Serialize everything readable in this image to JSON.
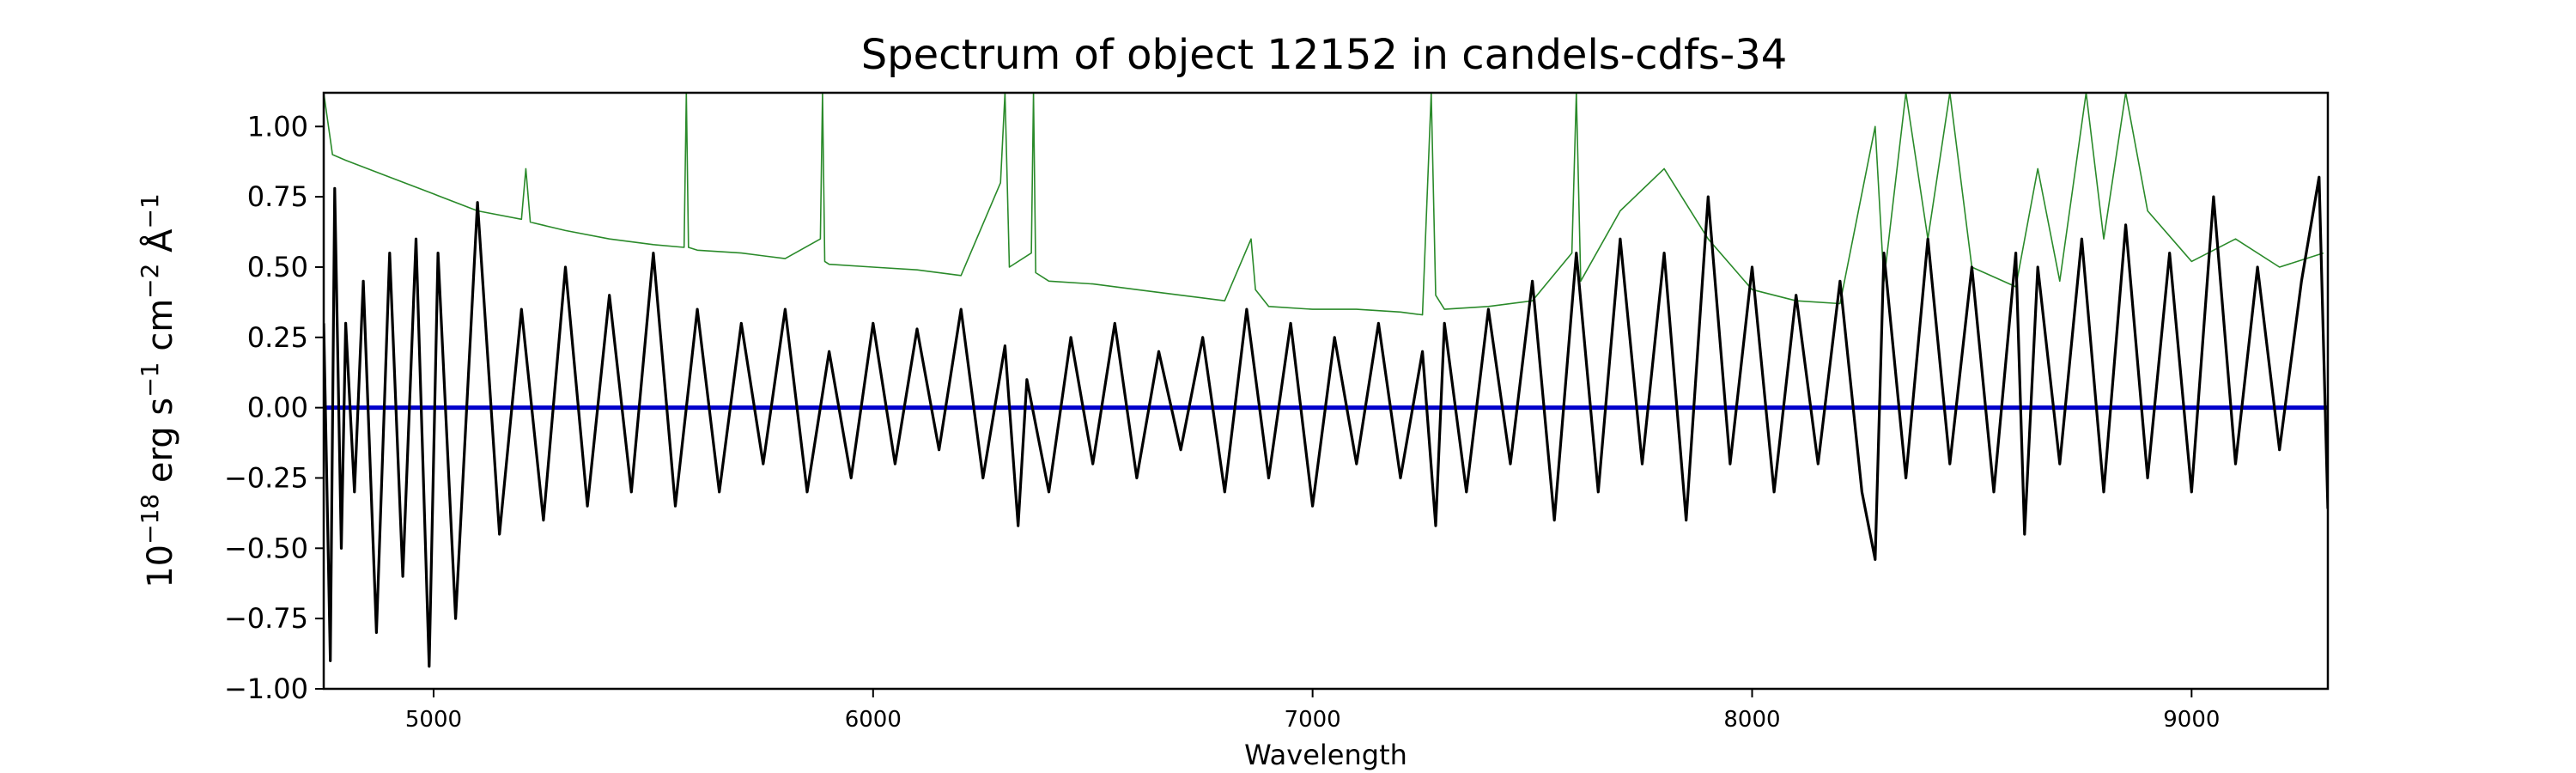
{
  "chart_data": {
    "type": "line",
    "title": "Spectrum of object 12152 in candels-cdfs-34",
    "xlabel": "Wavelength",
    "ylabel_parts": [
      "10",
      "−18",
      " erg s",
      "−1",
      " cm",
      "−2",
      " Å",
      "−1"
    ],
    "xlim": [
      4750,
      9310
    ],
    "ylim": [
      -1.0,
      1.12
    ],
    "x_ticks": [
      5000,
      6000,
      7000,
      8000,
      9000
    ],
    "x_tick_labels": [
      "5000",
      "6000",
      "7000",
      "8000",
      "9000"
    ],
    "y_ticks": [
      -1.0,
      -0.75,
      -0.5,
      -0.25,
      0.0,
      0.25,
      0.5,
      0.75,
      1.0
    ],
    "y_tick_labels": [
      "−1.00",
      "−0.75",
      "−0.50",
      "−0.25",
      "0.00",
      "0.25",
      "0.50",
      "0.75",
      "1.00"
    ],
    "grid": false,
    "series": [
      {
        "role": "error",
        "color": "#2a8a2a",
        "x": [
          4750,
          4770,
          4800,
          4900,
          5000,
          5100,
          5200,
          5210,
          5220,
          5300,
          5400,
          5500,
          5570,
          5575,
          5580,
          5600,
          5700,
          5800,
          5880,
          5885,
          5890,
          5900,
          6000,
          6100,
          6200,
          6290,
          6300,
          6310,
          6360,
          6365,
          6370,
          6400,
          6500,
          6600,
          6700,
          6800,
          6860,
          6870,
          6900,
          7000,
          7100,
          7200,
          7250,
          7270,
          7280,
          7300,
          7400,
          7500,
          7590,
          7600,
          7610,
          7700,
          7800,
          7900,
          8000,
          8100,
          8200,
          8280,
          8300,
          8350,
          8400,
          8450,
          8500,
          8600,
          8650,
          8700,
          8760,
          8800,
          8850,
          8900,
          9000,
          9100,
          9200,
          9300
        ],
        "y": [
          1.12,
          0.9,
          0.88,
          0.82,
          0.76,
          0.7,
          0.67,
          0.85,
          0.66,
          0.63,
          0.6,
          0.58,
          0.57,
          1.12,
          0.57,
          0.56,
          0.55,
          0.53,
          0.6,
          1.12,
          0.52,
          0.51,
          0.5,
          0.49,
          0.47,
          0.8,
          1.12,
          0.5,
          0.55,
          1.12,
          0.48,
          0.45,
          0.44,
          0.42,
          0.4,
          0.38,
          0.6,
          0.42,
          0.36,
          0.35,
          0.35,
          0.34,
          0.33,
          1.12,
          0.4,
          0.35,
          0.36,
          0.38,
          0.55,
          1.12,
          0.45,
          0.7,
          0.85,
          0.6,
          0.42,
          0.38,
          0.37,
          1.0,
          0.45,
          1.12,
          0.6,
          1.12,
          0.5,
          0.43,
          0.85,
          0.45,
          1.12,
          0.6,
          1.12,
          0.7,
          0.52,
          0.6,
          0.5,
          0.55
        ]
      },
      {
        "role": "model",
        "color": "#0000cc",
        "x": [
          4750,
          9310
        ],
        "y": [
          0.0,
          0.0
        ]
      },
      {
        "role": "data",
        "color": "#000000",
        "x": [
          4750,
          4765,
          4775,
          4790,
          4800,
          4820,
          4840,
          4870,
          4900,
          4930,
          4960,
          4990,
          5010,
          5050,
          5100,
          5150,
          5200,
          5250,
          5300,
          5350,
          5400,
          5450,
          5500,
          5550,
          5600,
          5650,
          5700,
          5750,
          5800,
          5850,
          5900,
          5950,
          6000,
          6050,
          6100,
          6150,
          6200,
          6250,
          6300,
          6330,
          6350,
          6400,
          6450,
          6500,
          6550,
          6600,
          6650,
          6700,
          6750,
          6800,
          6850,
          6900,
          6950,
          7000,
          7050,
          7100,
          7150,
          7200,
          7250,
          7280,
          7300,
          7350,
          7400,
          7450,
          7500,
          7550,
          7600,
          7650,
          7700,
          7750,
          7800,
          7850,
          7900,
          7950,
          8000,
          8050,
          8100,
          8150,
          8200,
          8250,
          8280,
          8300,
          8350,
          8400,
          8450,
          8500,
          8550,
          8600,
          8620,
          8650,
          8700,
          8750,
          8800,
          8850,
          8900,
          8950,
          9000,
          9050,
          9100,
          9150,
          9200,
          9250,
          9290,
          9310
        ],
        "y": [
          0.3,
          -0.9,
          0.78,
          -0.5,
          0.3,
          -0.3,
          0.45,
          -0.8,
          0.55,
          -0.6,
          0.6,
          -0.92,
          0.55,
          -0.75,
          0.73,
          -0.45,
          0.35,
          -0.4,
          0.5,
          -0.35,
          0.4,
          -0.3,
          0.55,
          -0.35,
          0.35,
          -0.3,
          0.3,
          -0.2,
          0.35,
          -0.3,
          0.2,
          -0.25,
          0.3,
          -0.2,
          0.28,
          -0.15,
          0.35,
          -0.25,
          0.22,
          -0.42,
          0.1,
          -0.3,
          0.25,
          -0.2,
          0.3,
          -0.25,
          0.2,
          -0.15,
          0.25,
          -0.3,
          0.35,
          -0.25,
          0.3,
          -0.35,
          0.25,
          -0.2,
          0.3,
          -0.25,
          0.2,
          -0.42,
          0.3,
          -0.3,
          0.35,
          -0.2,
          0.45,
          -0.4,
          0.55,
          -0.3,
          0.6,
          -0.2,
          0.55,
          -0.4,
          0.75,
          -0.2,
          0.5,
          -0.3,
          0.4,
          -0.2,
          0.45,
          -0.3,
          -0.54,
          0.55,
          -0.25,
          0.6,
          -0.2,
          0.5,
          -0.3,
          0.55,
          -0.45,
          0.5,
          -0.2,
          0.6,
          -0.3,
          0.65,
          -0.25,
          0.55,
          -0.3,
          0.75,
          -0.2,
          0.5,
          -0.15,
          0.45,
          0.82,
          -0.36
        ]
      }
    ]
  }
}
